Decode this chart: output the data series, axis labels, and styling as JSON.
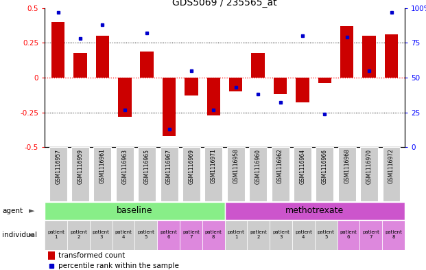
{
  "title": "GDS5069 / 235565_at",
  "x_labels": [
    "GSM1116957",
    "GSM1116959",
    "GSM1116961",
    "GSM1116963",
    "GSM1116965",
    "GSM1116967",
    "GSM1116969",
    "GSM1116971",
    "GSM1116958",
    "GSM1116960",
    "GSM1116962",
    "GSM1116964",
    "GSM1116966",
    "GSM1116968",
    "GSM1116970",
    "GSM1116972"
  ],
  "bar_values": [
    0.4,
    0.18,
    0.3,
    -0.28,
    0.19,
    -0.42,
    -0.13,
    -0.27,
    -0.1,
    0.18,
    -0.12,
    -0.18,
    -0.04,
    0.37,
    0.3,
    0.31
  ],
  "dot_values": [
    97,
    78,
    88,
    27,
    82,
    13,
    55,
    27,
    43,
    38,
    32,
    80,
    24,
    79,
    55,
    97
  ],
  "bar_color": "#cc0000",
  "dot_color": "#0000cc",
  "ylim": [
    -0.5,
    0.5
  ],
  "y2lim": [
    0,
    100
  ],
  "yticks": [
    -0.5,
    -0.25,
    0,
    0.25,
    0.5
  ],
  "y2ticks": [
    0,
    25,
    50,
    75,
    100
  ],
  "dotted_lines": [
    -0.25,
    0.0,
    0.25
  ],
  "hline_color": "#ff0000",
  "group1_label": "baseline",
  "group2_label": "methotrexate",
  "group1_color": "#88ee88",
  "group2_color": "#cc55cc",
  "agent_label": "agent",
  "individual_label": "individual",
  "patient_labels": [
    "patient\n1",
    "patient\n2",
    "patient\n3",
    "patient\n4",
    "patient\n5",
    "patient\n6",
    "patient\n7",
    "patient\n8"
  ],
  "patient_bg_gray": "#cccccc",
  "patient_bg_purple": "#dd88dd",
  "gsm_cell_bg": "#cccccc",
  "legend_bar_label": "transformed count",
  "legend_dot_label": "percentile rank within the sample",
  "arrow_color": "#555555",
  "patient_bg_order": [
    0,
    0,
    0,
    0,
    0,
    1,
    1,
    1,
    0,
    0,
    0,
    0,
    0,
    1,
    1,
    1
  ]
}
